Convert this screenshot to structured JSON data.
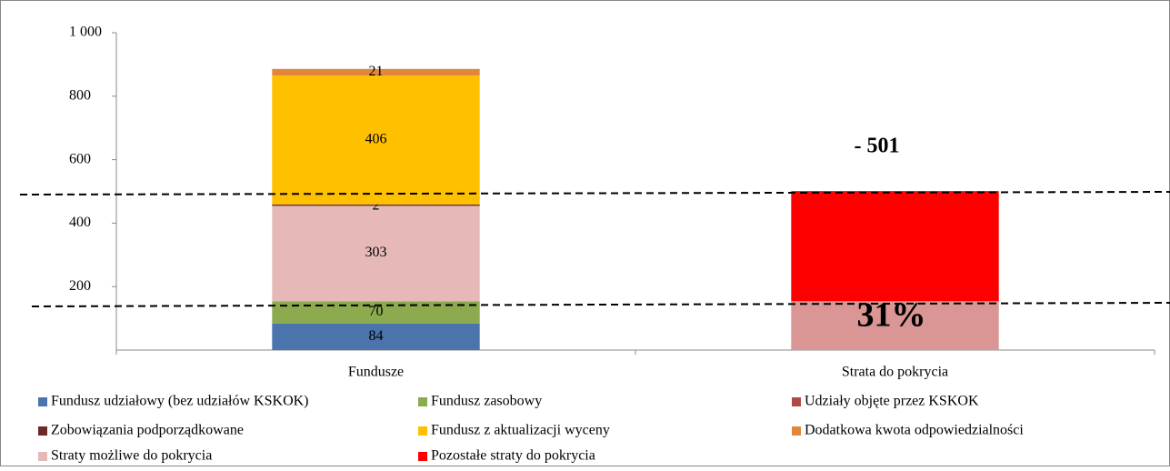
{
  "chart_data": {
    "type": "stacked_bar",
    "categories": [
      "Fundusze",
      "Strata do pokrycia"
    ],
    "series": [
      {
        "name": "Fundusz udziałowy (bez udziałów KSKOK)",
        "color": "#4a74ab",
        "values": [
          84,
          null
        ]
      },
      {
        "name": "Fundusz zasobowy",
        "color": "#8caa4e",
        "values": [
          70,
          null
        ]
      },
      {
        "name": "Udziały objęte przez KSKOK",
        "color": "#b04a47",
        "values": [
          0,
          null
        ]
      },
      {
        "name": "Zobowiązania podporządkowane",
        "color": "#6b2a2a",
        "values": [
          2,
          null
        ]
      },
      {
        "name": "Fundusz z aktualizacji wyceny",
        "color": "#ffc000",
        "values": [
          406,
          null
        ]
      },
      {
        "name": "Dodatkowa kwota odpowiedzialności",
        "color": "#e0873c",
        "values": [
          21,
          null
        ]
      },
      {
        "name": "Straty możliwe do pokrycia",
        "color": "#e6b9b8",
        "colors": [
          "#e6b9b8",
          "#d99694"
        ],
        "values": [
          303,
          154
        ]
      },
      {
        "name": "Pozostałe straty do pokrycia",
        "color": "#ff0000",
        "values": [
          null,
          347
        ]
      }
    ],
    "annotations": [
      "- 501",
      "31%"
    ],
    "ylim": [
      0,
      1000
    ],
    "yticks": [
      200,
      400,
      600,
      800,
      {
        "value": 1000,
        "label": "1 000"
      }
    ],
    "grid": false
  }
}
